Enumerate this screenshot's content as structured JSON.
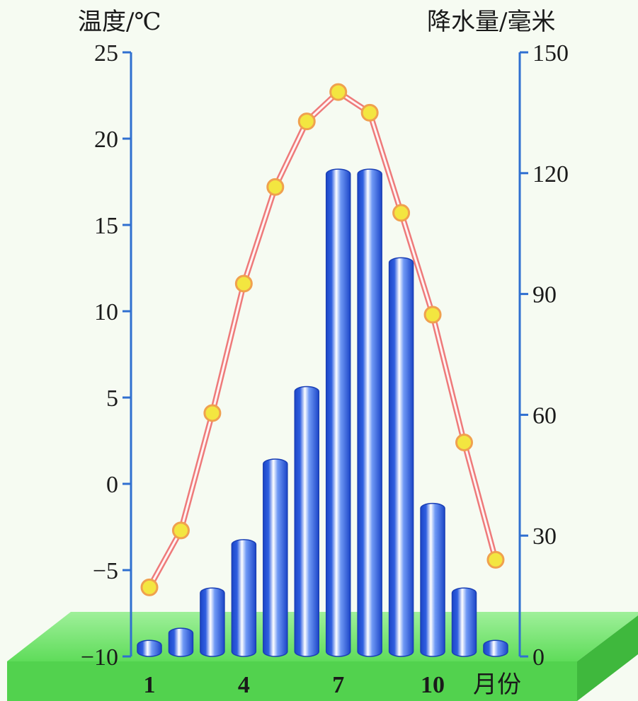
{
  "chart_data": {
    "type": "bar+line",
    "x_title": "月份",
    "y_left_title": "温度/℃",
    "y_right_title": "降水量/毫米",
    "x_ticks": [
      "1",
      "4",
      "7",
      "10"
    ],
    "y_left_ticks": [
      "25",
      "20",
      "15",
      "10",
      "5",
      "0",
      "−5",
      "−10"
    ],
    "y_right_ticks": [
      "150",
      "120",
      "90",
      "60",
      "30",
      "0"
    ],
    "y_left_range": [
      -10,
      25
    ],
    "y_right_range": [
      0,
      150
    ],
    "months": [
      1,
      2,
      3,
      4,
      5,
      6,
      7,
      8,
      9,
      10,
      11,
      12
    ],
    "series": [
      {
        "type": "line",
        "axis": "left",
        "values": [
          -6,
          -2.7,
          4.1,
          11.6,
          17.2,
          21.0,
          22.7,
          21.5,
          15.7,
          9.8,
          2.4,
          -4.4
        ]
      },
      {
        "type": "bar",
        "axis": "right",
        "values": [
          4,
          7,
          17,
          29,
          49,
          67,
          121,
          121,
          99,
          38,
          17,
          4
        ]
      }
    ],
    "colors": {
      "bar_blue": "#2f5fe0",
      "line_red": "#ee7a7a",
      "marker_yellow": "#f3e640",
      "marker_ring": "#f0a14e",
      "axis_blue": "#2f6fd0",
      "ground_green": "#5fdc5a"
    }
  }
}
